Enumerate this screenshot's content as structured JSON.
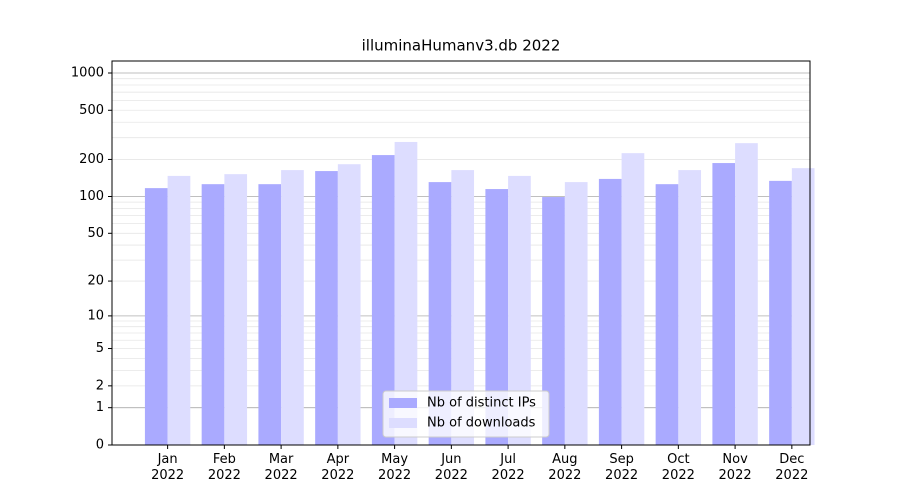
{
  "chart_data": {
    "type": "bar",
    "title": "illuminaHumanv3.db 2022",
    "categories": [
      "Jan\n2022",
      "Feb\n2022",
      "Mar\n2022",
      "Apr\n2022",
      "May\n2022",
      "Jun\n2022",
      "Jul\n2022",
      "Aug\n2022",
      "Sep\n2022",
      "Oct\n2022",
      "Nov\n2022",
      "Dec\n2022"
    ],
    "series": [
      {
        "name": "Nb of distinct IPs",
        "color": "#aaaaff",
        "values": [
          117,
          126,
          126,
          161,
          217,
          131,
          115,
          99,
          139,
          126,
          187,
          134
        ]
      },
      {
        "name": "Nb of downloads",
        "color": "#ddddff",
        "values": [
          147,
          152,
          164,
          183,
          277,
          164,
          147,
          131,
          225,
          164,
          271,
          170
        ]
      }
    ],
    "y_scale": "log1p",
    "ylim": [
      0,
      1250
    ],
    "yticks": [
      0,
      1,
      2,
      5,
      10,
      20,
      50,
      100,
      200,
      500,
      1000
    ],
    "major_grid": [
      1,
      10,
      100,
      1000
    ],
    "minor_grid": [
      3,
      4,
      6,
      7,
      8,
      9,
      30,
      40,
      60,
      70,
      80,
      90,
      300,
      400,
      600,
      700,
      800,
      900
    ],
    "legend": "lower center"
  }
}
